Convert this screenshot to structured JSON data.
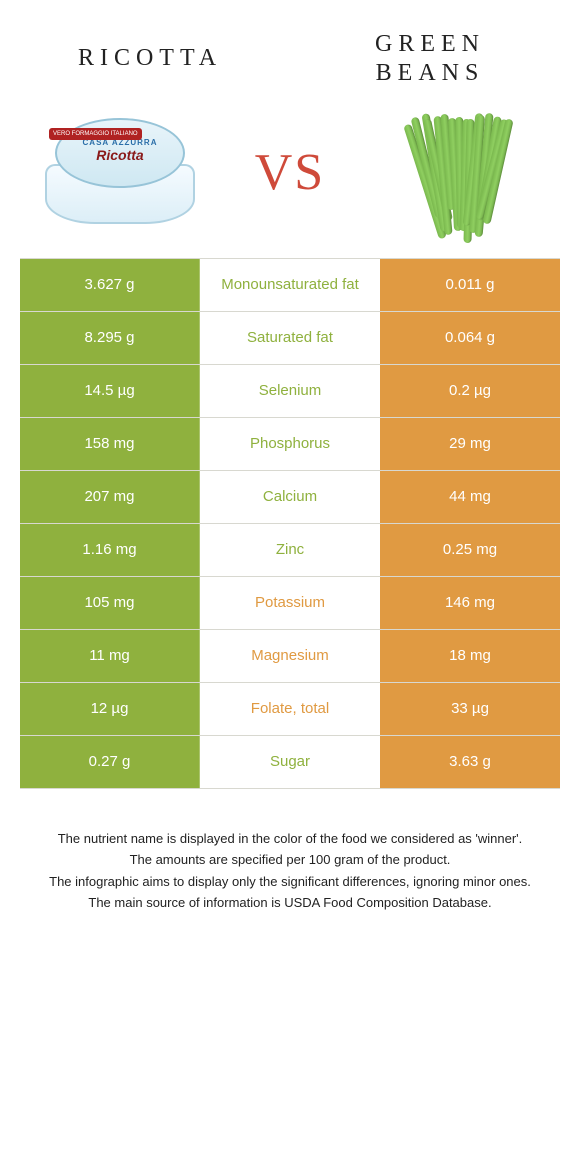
{
  "colors": {
    "left_food": "#8fb13e",
    "right_food": "#e09a42",
    "vs": "#cf4a3a",
    "text_dark": "#222222",
    "row_border": "#d8d8d0",
    "white": "#ffffff"
  },
  "header": {
    "left_title": "RICOTTA",
    "right_title": "GREEN BEANS",
    "vs_label": "VS"
  },
  "ricotta_image": {
    "brand": "CASA AZZURRA",
    "name": "Ricotta",
    "badge": "VERO FORMAGGIO ITALIANO"
  },
  "table": {
    "rows": [
      {
        "nutrient": "Monounsaturated fat",
        "left": "3.627 g",
        "right": "0.011 g",
        "winner": "left"
      },
      {
        "nutrient": "Saturated fat",
        "left": "8.295 g",
        "right": "0.064 g",
        "winner": "left"
      },
      {
        "nutrient": "Selenium",
        "left": "14.5 µg",
        "right": "0.2 µg",
        "winner": "left"
      },
      {
        "nutrient": "Phosphorus",
        "left": "158 mg",
        "right": "29 mg",
        "winner": "left"
      },
      {
        "nutrient": "Calcium",
        "left": "207 mg",
        "right": "44 mg",
        "winner": "left"
      },
      {
        "nutrient": "Zinc",
        "left": "1.16 mg",
        "right": "0.25 mg",
        "winner": "left"
      },
      {
        "nutrient": "Potassium",
        "left": "105 mg",
        "right": "146 mg",
        "winner": "right"
      },
      {
        "nutrient": "Magnesium",
        "left": "11 mg",
        "right": "18 mg",
        "winner": "right"
      },
      {
        "nutrient": "Folate, total",
        "left": "12 µg",
        "right": "33 µg",
        "winner": "right"
      },
      {
        "nutrient": "Sugar",
        "left": "0.27 g",
        "right": "3.63 g",
        "winner": "left"
      }
    ]
  },
  "footnotes": [
    "The nutrient name is displayed in the color of the food we considered as 'winner'.",
    "The amounts are specified per 100 gram of the product.",
    "The infographic aims to display only the significant differences, ignoring minor ones.",
    "The main source of information is USDA Food Composition Database."
  ]
}
